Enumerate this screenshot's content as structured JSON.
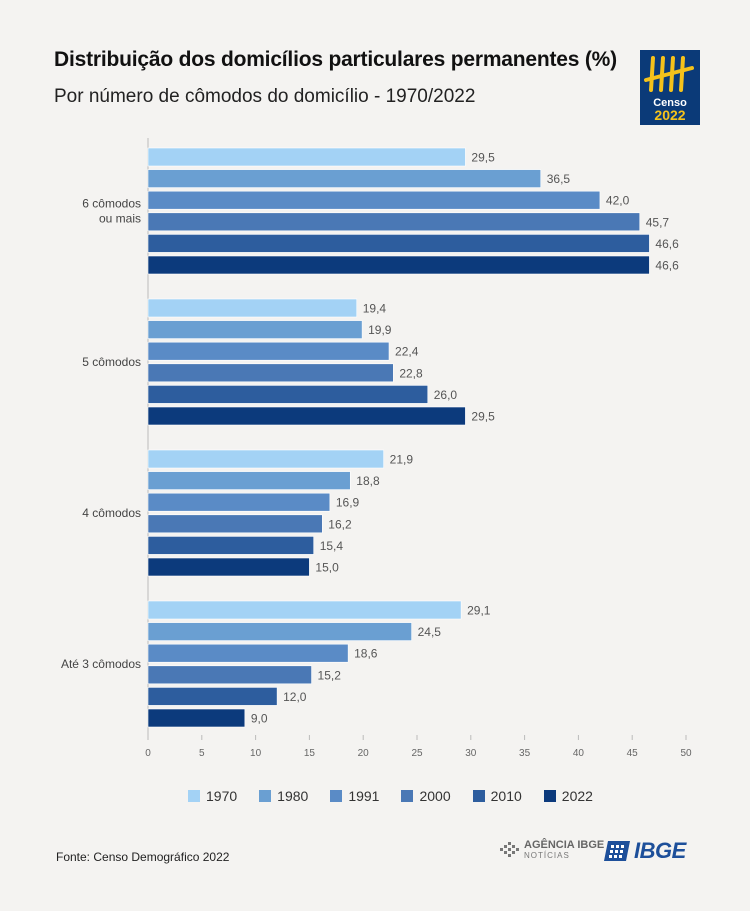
{
  "header": {
    "title": "Distribuição dos domicílios particulares permanentes (%)",
    "subtitle": "Por número de cômodos do domicílio - 1970/2022"
  },
  "logos": {
    "censo_line1": "Censo",
    "censo_line2": "2022",
    "agencia_line1": "AGÊNCIA IBGE",
    "agencia_line2": "NOTÍCIAS",
    "ibge": "IBGE"
  },
  "footer": {
    "source": "Fonte: Censo Demográfico 2022"
  },
  "colors": {
    "1970": "#a3d2f5",
    "1980": "#6a9fd2",
    "1991": "#5a8bc6",
    "2000": "#4a78b5",
    "2010": "#2d5d9e",
    "2022": "#0c3a7c",
    "text": "#555555",
    "axis": "#bbbbbb",
    "logo_gold": "#f5c21b"
  },
  "chart_data": {
    "type": "bar",
    "orientation": "horizontal",
    "title": "Distribuição dos domicílios particulares permanentes (%)",
    "subtitle": "Por número de cômodos do domicílio - 1970/2022",
    "categories": [
      "6 cômodos ou mais",
      "5 cômodos",
      "4 cômodos",
      "Até 3 cômodos"
    ],
    "category_lines": [
      [
        "6 cômodos",
        "ou mais"
      ],
      [
        "5 cômodos"
      ],
      [
        "4 cômodos"
      ],
      [
        "Até 3 cômodos"
      ]
    ],
    "series": [
      {
        "name": "1970",
        "values": [
          29.5,
          19.4,
          21.9,
          29.1
        ],
        "labels": [
          "29,5",
          "19,4",
          "21,9",
          "29,1"
        ]
      },
      {
        "name": "1980",
        "values": [
          36.5,
          19.9,
          18.8,
          24.5
        ],
        "labels": [
          "36,5",
          "19,9",
          "18,8",
          "24,5"
        ]
      },
      {
        "name": "1991",
        "values": [
          42.0,
          22.4,
          16.9,
          18.6
        ],
        "labels": [
          "42,0",
          "22,4",
          "16,9",
          "18,6"
        ]
      },
      {
        "name": "2000",
        "values": [
          45.7,
          22.8,
          16.2,
          15.2
        ],
        "labels": [
          "45,7",
          "22,8",
          "16,2",
          "15,2"
        ]
      },
      {
        "name": "2010",
        "values": [
          46.6,
          26.0,
          15.4,
          12.0
        ],
        "labels": [
          "46,6",
          "26,0",
          "15,4",
          "12,0"
        ]
      },
      {
        "name": "2022",
        "values": [
          46.6,
          29.5,
          15.0,
          9.0
        ],
        "labels": [
          "46,6",
          "29,5",
          "15,0",
          "9,0"
        ]
      }
    ],
    "xlim": [
      0,
      50
    ],
    "xticks": [
      0,
      5,
      10,
      15,
      20,
      25,
      30,
      35,
      40,
      45,
      50
    ],
    "xlabel": "",
    "ylabel": "",
    "legend": "bottom",
    "grid": false
  }
}
